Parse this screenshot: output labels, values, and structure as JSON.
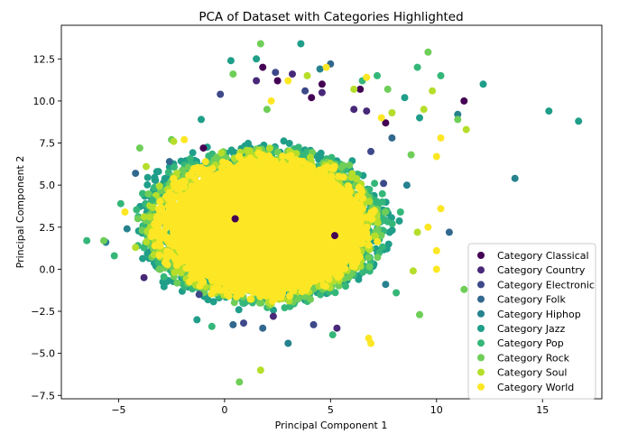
{
  "chart_data": {
    "type": "scatter",
    "title": "PCA of Dataset with Categories Highlighted",
    "xlabel": "Principal Component 1",
    "ylabel": "Principal Component 2",
    "xlim": [
      -7.7,
      17.8
    ],
    "ylim": [
      -7.7,
      14.5
    ],
    "xticks": [
      -5,
      0,
      5,
      10,
      15
    ],
    "yticks": [
      -7.5,
      -5.0,
      -2.5,
      0.0,
      2.5,
      5.0,
      7.5,
      10.0,
      12.5
    ],
    "grid": false,
    "legend_position": "lower-right",
    "series": [
      {
        "name": "Category Classical",
        "color": "#440154",
        "points": [
          [
            1.8,
            12.0
          ],
          [
            4.6,
            11.0
          ],
          [
            7.6,
            8.7
          ],
          [
            5.2,
            2.0
          ],
          [
            2.5,
            11.2
          ],
          [
            11.3,
            10.0
          ],
          [
            -1.0,
            7.2
          ],
          [
            4.1,
            10.2
          ],
          [
            6.4,
            10.7
          ],
          [
            0.5,
            3.0
          ]
        ]
      },
      {
        "name": "Category Country",
        "color": "#482878",
        "points": [
          [
            3.2,
            11.6
          ],
          [
            5.3,
            -3.5
          ],
          [
            1.5,
            11.2
          ],
          [
            6.1,
            9.5
          ],
          [
            4.6,
            10.5
          ],
          [
            -3.8,
            -0.5
          ],
          [
            6.7,
            9.4
          ],
          [
            2.3,
            -2.8
          ]
        ]
      },
      {
        "name": "Category Electronic",
        "color": "#3e4989",
        "points": [
          [
            -0.2,
            10.4
          ],
          [
            0.9,
            -3.2
          ],
          [
            3.8,
            10.6
          ],
          [
            6.9,
            7.0
          ],
          [
            -1.2,
            -1.5
          ],
          [
            4.2,
            -3.3
          ],
          [
            7.5,
            5.1
          ],
          [
            2.4,
            11.7
          ]
        ]
      },
      {
        "name": "Category Folk",
        "color": "#31688e",
        "points": [
          [
            10.6,
            2.2
          ],
          [
            1.8,
            -3.5
          ],
          [
            5.0,
            12.2
          ],
          [
            7.9,
            7.8
          ],
          [
            0.4,
            -3.3
          ],
          [
            -4.2,
            5.7
          ],
          [
            -2.6,
            6.4
          ]
        ]
      },
      {
        "name": "Category Hiphop",
        "color": "#26828e",
        "points": [
          [
            13.7,
            5.4
          ],
          [
            11.0,
            9.2
          ],
          [
            -4.6,
            2.4
          ],
          [
            8.6,
            5.0
          ],
          [
            4.5,
            11.9
          ],
          [
            3.0,
            -4.4
          ],
          [
            7.6,
            -0.9
          ],
          [
            -5.6,
            1.6
          ]
        ]
      },
      {
        "name": "Category Jazz",
        "color": "#1f9e89",
        "points": [
          [
            15.3,
            9.4
          ],
          [
            16.7,
            8.8
          ],
          [
            12.2,
            11.0
          ],
          [
            0.3,
            12.4
          ],
          [
            1.5,
            12.5
          ],
          [
            3.6,
            13.4
          ],
          [
            9.2,
            9.0
          ],
          [
            8.5,
            10.2
          ],
          [
            -1.1,
            8.9
          ],
          [
            -1.3,
            -3.0
          ]
        ]
      },
      {
        "name": "Category Pop",
        "color": "#35b779",
        "points": [
          [
            -6.5,
            1.7
          ],
          [
            10.2,
            11.5
          ],
          [
            -4.9,
            3.9
          ],
          [
            6.5,
            11.2
          ],
          [
            9.1,
            12.0
          ],
          [
            -3.4,
            4.1
          ],
          [
            -0.6,
            -3.4
          ],
          [
            8.1,
            -1.4
          ],
          [
            -5.2,
            0.8
          ],
          [
            8.3,
            3.4
          ],
          [
            7.2,
            11.5
          ],
          [
            5.1,
            -3.9
          ]
        ]
      },
      {
        "name": "Category Rock",
        "color": "#6ece58",
        "points": [
          [
            0.7,
            -6.7
          ],
          [
            1.7,
            13.4
          ],
          [
            9.6,
            12.9
          ],
          [
            11.0,
            8.9
          ],
          [
            -4.0,
            7.2
          ],
          [
            9.2,
            -2.7
          ],
          [
            -5.7,
            1.7
          ],
          [
            2.0,
            9.5
          ],
          [
            0.4,
            11.6
          ],
          [
            7.7,
            10.7
          ],
          [
            11.3,
            -1.2
          ],
          [
            8.8,
            6.8
          ],
          [
            -2.5,
            7.7
          ]
        ]
      },
      {
        "name": "Category Soul",
        "color": "#b5de2b",
        "points": [
          [
            1.7,
            -6.0
          ],
          [
            9.4,
            9.5
          ],
          [
            11.4,
            8.3
          ],
          [
            9.8,
            10.6
          ],
          [
            -4.2,
            1.3
          ],
          [
            8.9,
            -0.1
          ],
          [
            9.1,
            2.2
          ],
          [
            6.1,
            10.7
          ],
          [
            -2.4,
            7.6
          ],
          [
            3.9,
            11.5
          ],
          [
            -3.7,
            6.1
          ],
          [
            7.9,
            9.3
          ]
        ]
      },
      {
        "name": "Category World",
        "color": "#fde725",
        "points": [
          [
            6.9,
            -4.4
          ],
          [
            10.0,
            6.7
          ],
          [
            10.2,
            7.8
          ],
          [
            10.2,
            3.6
          ],
          [
            10.0,
            0.0
          ],
          [
            10.0,
            1.1
          ],
          [
            -0.9,
            6.4
          ],
          [
            2.2,
            10.0
          ],
          [
            4.8,
            12.0
          ],
          [
            6.7,
            11.4
          ],
          [
            -4.7,
            3.4
          ],
          [
            9.6,
            2.5
          ],
          [
            3.0,
            11.2
          ],
          [
            7.4,
            9.0
          ],
          [
            -1.9,
            7.7
          ],
          [
            6.8,
            -4.1
          ]
        ]
      }
    ],
    "dense_core": {
      "description_hidden": true,
      "center": [
        1.8,
        2.6
      ],
      "series_order_front": [
        "Category World",
        "Category Soul",
        "Category Rock",
        "Category Pop",
        "Category Jazz"
      ]
    }
  }
}
